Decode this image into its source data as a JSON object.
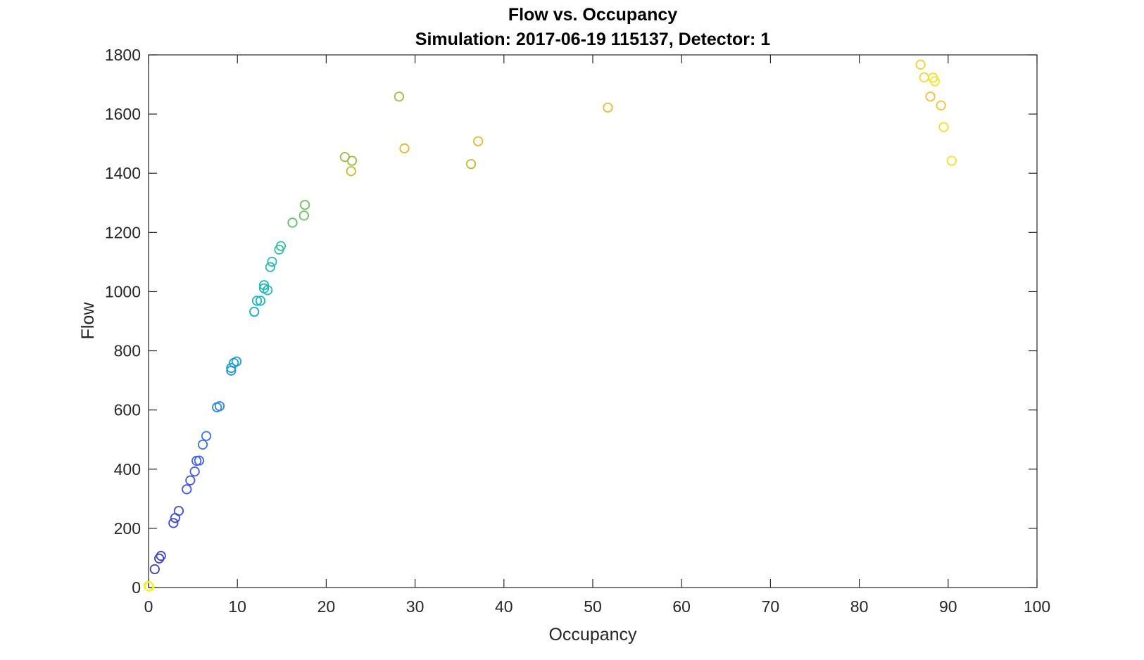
{
  "chart_data": {
    "type": "scatter",
    "title": "Flow vs. Occupancy",
    "subtitle": "Simulation:  2017-06-19 115137,  Detector:  1",
    "xlabel": "Occupancy",
    "ylabel": "Flow",
    "xlim": [
      0,
      100
    ],
    "ylim": [
      0,
      1800
    ],
    "xticks": [
      "0",
      "10",
      "20",
      "30",
      "40",
      "50",
      "60",
      "70",
      "80",
      "90",
      "100"
    ],
    "yticks": [
      "0",
      "200",
      "400",
      "600",
      "800",
      "1000",
      "1200",
      "1400",
      "1600",
      "1800"
    ],
    "grid": false,
    "legend": "none",
    "marker": "open-circle",
    "colormap": "parula",
    "points": [
      {
        "x": 0.0,
        "y": 5,
        "color": "#f4e61c"
      },
      {
        "x": 0.1,
        "y": 3,
        "color": "#f9f81e"
      },
      {
        "x": 0.7,
        "y": 62,
        "color": "#3b3ec0"
      },
      {
        "x": 1.2,
        "y": 98,
        "color": "#3d40c6"
      },
      {
        "x": 1.4,
        "y": 107,
        "color": "#3e44cc"
      },
      {
        "x": 2.8,
        "y": 218,
        "color": "#4045d6"
      },
      {
        "x": 3.0,
        "y": 235,
        "color": "#4148dc"
      },
      {
        "x": 3.4,
        "y": 259,
        "color": "#414adf"
      },
      {
        "x": 4.3,
        "y": 332,
        "color": "#4352e4"
      },
      {
        "x": 4.7,
        "y": 362,
        "color": "#4357e8"
      },
      {
        "x": 5.2,
        "y": 392,
        "color": "#425dee"
      },
      {
        "x": 5.4,
        "y": 428,
        "color": "#3f63f1"
      },
      {
        "x": 5.7,
        "y": 429,
        "color": "#3f66f3"
      },
      {
        "x": 6.1,
        "y": 483,
        "color": "#3c6ef5"
      },
      {
        "x": 6.5,
        "y": 512,
        "color": "#3a72f7"
      },
      {
        "x": 7.7,
        "y": 609,
        "color": "#2f83ec"
      },
      {
        "x": 8.0,
        "y": 613,
        "color": "#2d86ea"
      },
      {
        "x": 9.3,
        "y": 733,
        "color": "#1e96e0"
      },
      {
        "x": 9.3,
        "y": 742,
        "color": "#1d98df"
      },
      {
        "x": 9.6,
        "y": 759,
        "color": "#1b9bde"
      },
      {
        "x": 9.9,
        "y": 764,
        "color": "#1a9edc"
      },
      {
        "x": 11.9,
        "y": 932,
        "color": "#0fb2ce"
      },
      {
        "x": 12.2,
        "y": 969,
        "color": "#10b4cb"
      },
      {
        "x": 12.6,
        "y": 969,
        "color": "#13b6c6"
      },
      {
        "x": 13.0,
        "y": 1011,
        "color": "#16b8bf"
      },
      {
        "x": 13.0,
        "y": 1022,
        "color": "#19b9bc"
      },
      {
        "x": 13.4,
        "y": 1005,
        "color": "#1cbab9"
      },
      {
        "x": 13.7,
        "y": 1083,
        "color": "#25bcaf"
      },
      {
        "x": 13.9,
        "y": 1101,
        "color": "#28bdab"
      },
      {
        "x": 14.7,
        "y": 1142,
        "color": "#2fbf9f"
      },
      {
        "x": 14.9,
        "y": 1154,
        "color": "#33c09a"
      },
      {
        "x": 16.2,
        "y": 1233,
        "color": "#5cc363"
      },
      {
        "x": 17.5,
        "y": 1257,
        "color": "#66c45b"
      },
      {
        "x": 17.6,
        "y": 1293,
        "color": "#6ac456"
      },
      {
        "x": 22.1,
        "y": 1455,
        "color": "#94bf3c"
      },
      {
        "x": 22.8,
        "y": 1407,
        "color": "#c5ba2d"
      },
      {
        "x": 22.9,
        "y": 1442,
        "color": "#9dbd3a"
      },
      {
        "x": 28.2,
        "y": 1659,
        "color": "#a2bc37"
      },
      {
        "x": 28.8,
        "y": 1484,
        "color": "#e7b42a"
      },
      {
        "x": 36.3,
        "y": 1431,
        "color": "#c7b52e"
      },
      {
        "x": 37.1,
        "y": 1508,
        "color": "#efb52b"
      },
      {
        "x": 51.7,
        "y": 1622,
        "color": "#f4b92e"
      },
      {
        "x": 86.9,
        "y": 1767,
        "color": "#f5d22a"
      },
      {
        "x": 87.3,
        "y": 1724,
        "color": "#f6d72a"
      },
      {
        "x": 88.0,
        "y": 1659,
        "color": "#f3bf31"
      },
      {
        "x": 88.3,
        "y": 1723,
        "color": "#f5dc27"
      },
      {
        "x": 88.5,
        "y": 1711,
        "color": "#f7e624"
      },
      {
        "x": 89.2,
        "y": 1629,
        "color": "#f2c42f"
      },
      {
        "x": 89.5,
        "y": 1556,
        "color": "#f5df25"
      },
      {
        "x": 90.4,
        "y": 1442,
        "color": "#f7e025"
      }
    ]
  }
}
